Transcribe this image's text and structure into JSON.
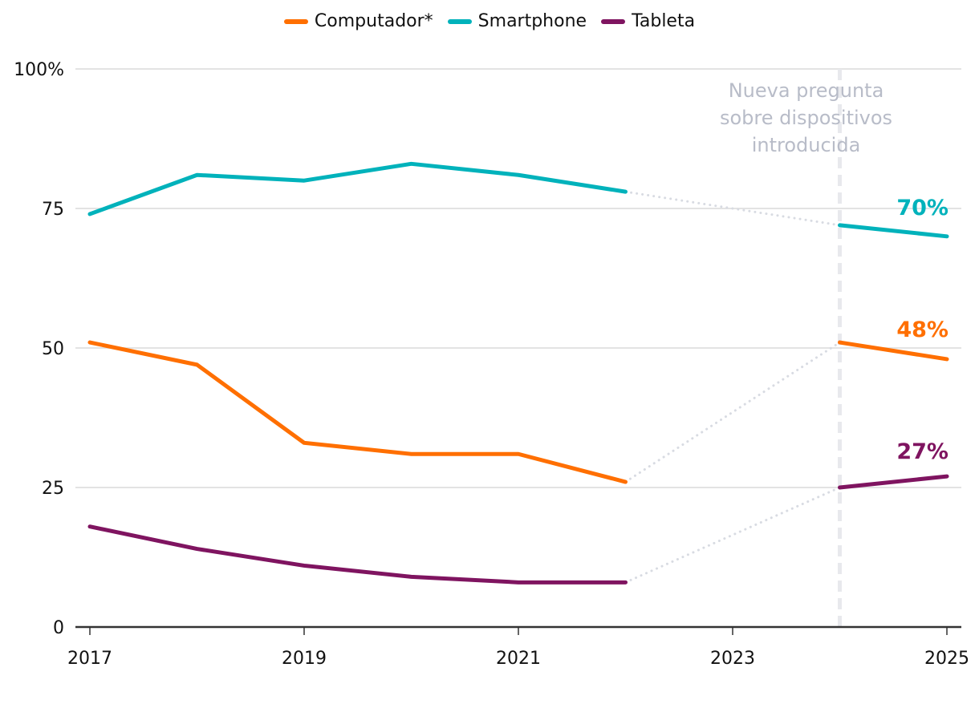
{
  "chart_data": {
    "type": "line",
    "title": "",
    "xlabel": "",
    "ylabel": "",
    "ylim": [
      0,
      100
    ],
    "xlim": [
      2017,
      2025
    ],
    "grid": true,
    "legend_position": "top-center",
    "y_ticks": [
      "0",
      "25",
      "50",
      "75",
      "100%"
    ],
    "y_tick_values": [
      0,
      25,
      50,
      75,
      100
    ],
    "x_ticks": [
      "2017",
      "2019",
      "2021",
      "2023",
      "2025"
    ],
    "x_tick_values": [
      2017,
      2019,
      2021,
      2023,
      2025
    ],
    "series": [
      {
        "name": "Computador*",
        "color": "#ff6f00",
        "segments": [
          {
            "x": [
              2017,
              2018,
              2019,
              2020,
              2021,
              2022
            ],
            "y": [
              51,
              47,
              33,
              31,
              31,
              26
            ]
          },
          {
            "x": [
              2024,
              2025
            ],
            "y": [
              51,
              48
            ]
          }
        ],
        "end_label": "48%"
      },
      {
        "name": "Smartphone",
        "color": "#00b2bb",
        "segments": [
          {
            "x": [
              2017,
              2018,
              2019,
              2020,
              2021,
              2022
            ],
            "y": [
              74,
              81,
              80,
              83,
              81,
              78
            ]
          },
          {
            "x": [
              2024,
              2025
            ],
            "y": [
              72,
              70
            ]
          }
        ],
        "end_label": "70%"
      },
      {
        "name": "Tableta",
        "color": "#7f1460",
        "segments": [
          {
            "x": [
              2017,
              2018,
              2019,
              2020,
              2021,
              2022
            ],
            "y": [
              18,
              14,
              11,
              9,
              8,
              8
            ]
          },
          {
            "x": [
              2024,
              2025
            ],
            "y": [
              25,
              27
            ]
          }
        ],
        "end_label": "27%"
      }
    ],
    "annotation": {
      "x": 2024,
      "lines": [
        "Nueva pregunta",
        "sobre dispositivos",
        "introducida"
      ]
    },
    "colors": {
      "grid": "#e3e3e3",
      "axis": "#333333",
      "connector": "#d8dbe2",
      "annotation_line": "#e8e9ed",
      "annotation_text": "#b8bcc8"
    }
  }
}
